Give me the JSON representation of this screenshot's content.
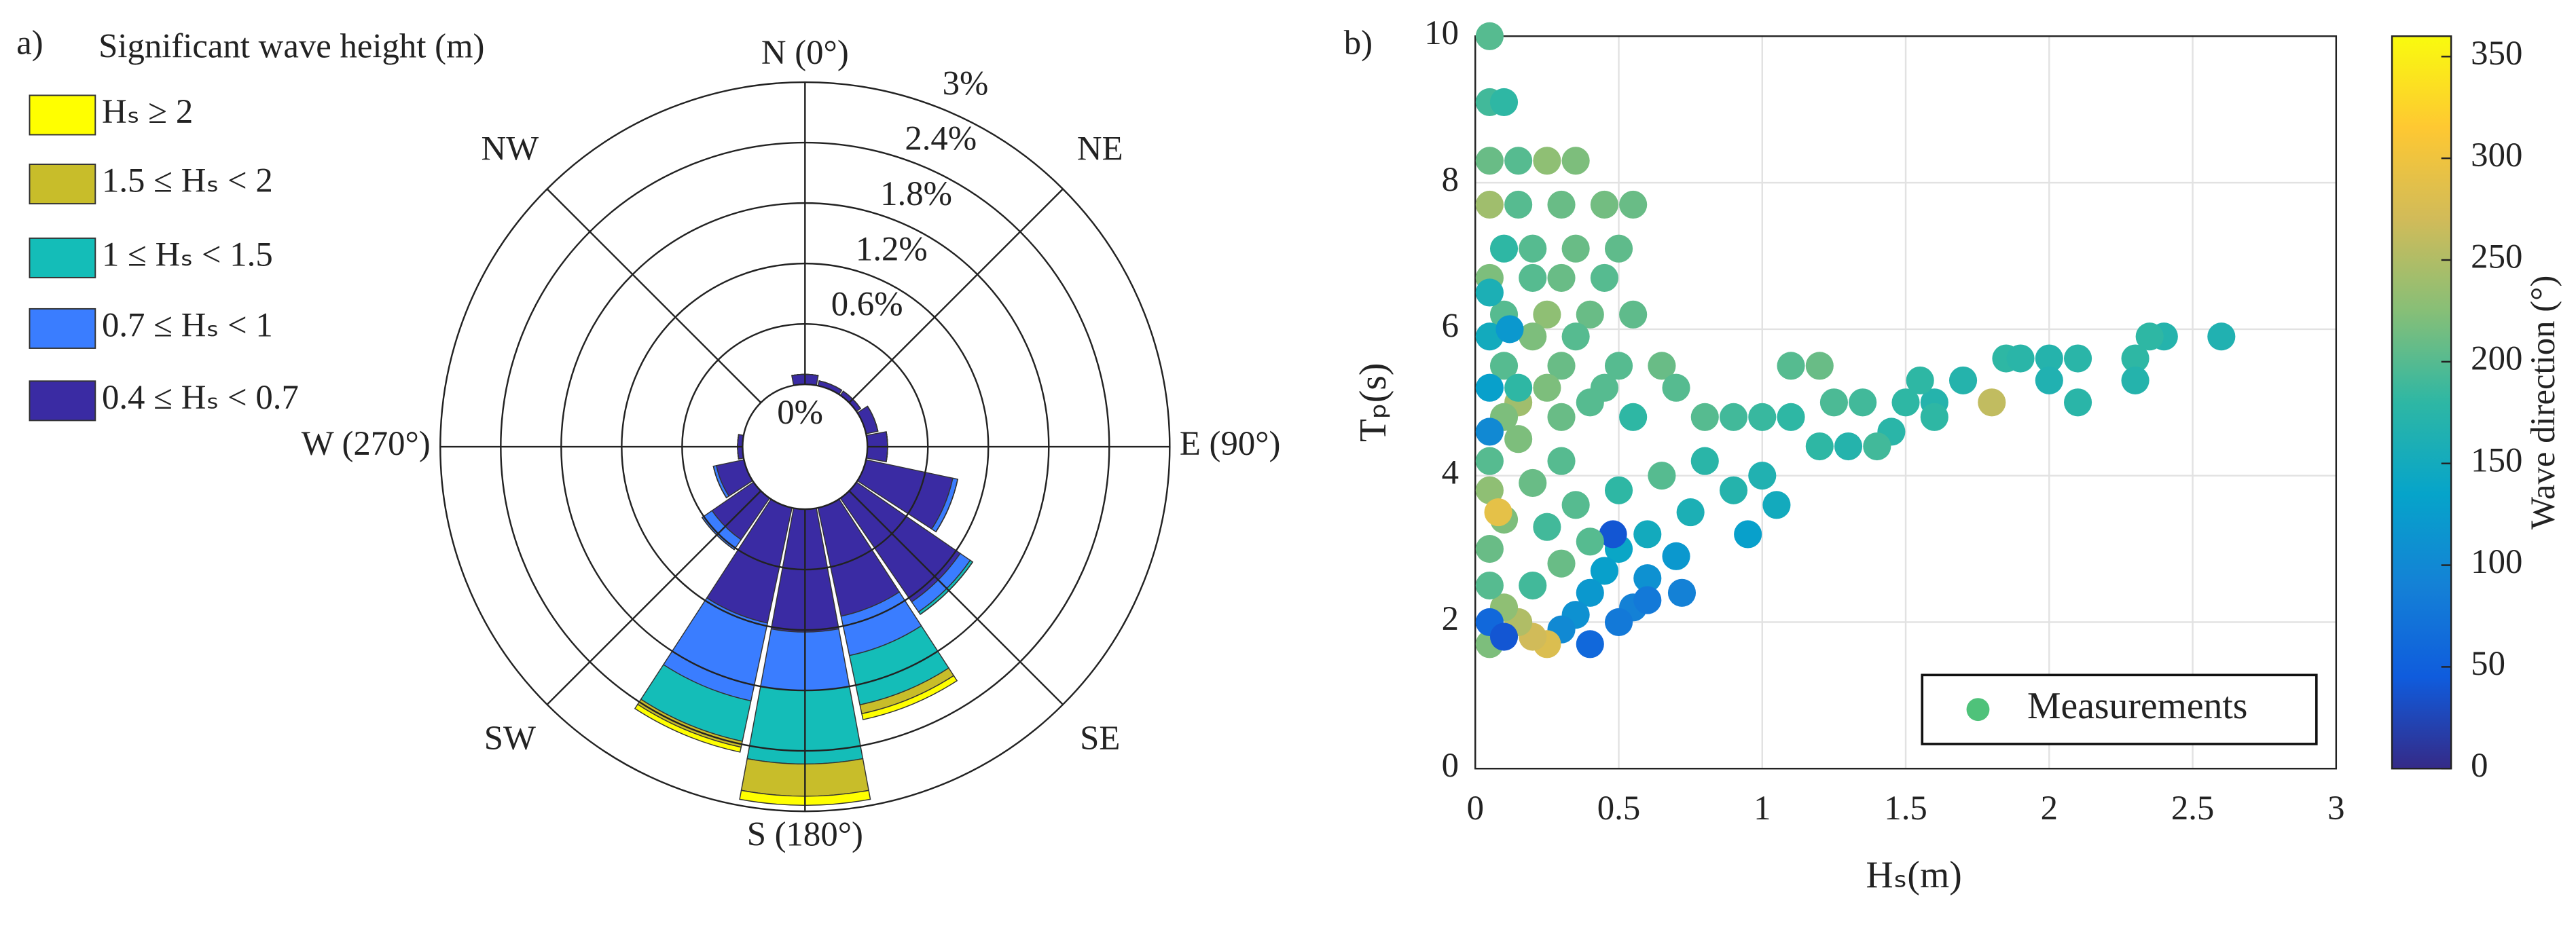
{
  "chart_data": [
    {
      "type": "rose",
      "panel": "a)",
      "legend_title": "Significant wave height (m)",
      "direction_labels": [
        "N (0°)",
        "NE",
        "E (90°)",
        "SE",
        "S (180°)",
        "SW",
        "W (270°)",
        "NW"
      ],
      "directions": [
        0,
        22.5,
        45,
        67.5,
        90,
        112.5,
        135,
        157.5,
        180,
        202.5,
        225,
        247.5,
        270,
        292.5,
        315,
        337.5
      ],
      "rlim": [
        0,
        3
      ],
      "rticks": [
        {
          "value": 0,
          "label": "0%"
        },
        {
          "value": 0.6,
          "label": "0.6%"
        },
        {
          "value": 1.2,
          "label": "1.2%"
        },
        {
          "value": 1.8,
          "label": "1.8%"
        },
        {
          "value": 2.4,
          "label": "2.4%"
        },
        {
          "value": 3,
          "label": "3%"
        }
      ],
      "series": [
        {
          "name": "Hₛ ≥ 2",
          "color": "#ffff00",
          "values": [
            0,
            0,
            0,
            0,
            0,
            0,
            0,
            0.06,
            0.09,
            0.05,
            0,
            0,
            0,
            0,
            0,
            0
          ]
        },
        {
          "name": "1.5 ≤ Hₛ < 2",
          "color": "#c8bd2a",
          "values": [
            0,
            0,
            0,
            0,
            0,
            0,
            0,
            0.09,
            0.32,
            0.06,
            0,
            0,
            0,
            0,
            0,
            0
          ]
        },
        {
          "name": "1 ≤ Hₛ < 1.5",
          "color": "#14bdb8",
          "values": [
            0,
            0,
            0,
            0,
            0,
            0,
            0.03,
            0.5,
            0.73,
            0.41,
            0,
            0,
            0,
            0,
            0,
            0
          ]
        },
        {
          "name": "0.7 ≤ Hₛ < 1",
          "color": "#3a7dff",
          "values": [
            0,
            0,
            0,
            0,
            0,
            0.05,
            0.12,
            0.4,
            0.58,
            0.79,
            0.12,
            0.03,
            0,
            0,
            0,
            0
          ]
        },
        {
          "name": "0.4 ≤ Hₛ < 0.7",
          "color": "#3a2ba3",
          "values": [
            0.1,
            0.05,
            0.05,
            0.12,
            0.2,
            0.88,
            1.25,
            1.1,
            1.22,
            1.17,
            0.5,
            0.28,
            0.05,
            0,
            0,
            0
          ]
        }
      ]
    },
    {
      "type": "scatter",
      "panel": "b)",
      "xlabel": "Hₛ(m)",
      "ylabel": "Tₚ(s)",
      "colorbar_label": "Wave direction (°)",
      "xlim": [
        0,
        3
      ],
      "xticks": [
        0,
        0.5,
        1,
        1.5,
        2,
        2.5,
        3
      ],
      "ylim": [
        0,
        10
      ],
      "yticks": [
        0,
        2,
        4,
        6,
        8,
        10
      ],
      "clim": [
        0,
        360
      ],
      "cticks": [
        0,
        50,
        100,
        150,
        200,
        250,
        300,
        350
      ],
      "grid": true,
      "legend": "bottom-right",
      "series": [
        {
          "name": "Measurements",
          "x": [
            0.05,
            0.05,
            0.1,
            0.05,
            0.15,
            0.25,
            0.35,
            0.05,
            0.15,
            0.3,
            0.45,
            0.55,
            0.1,
            0.2,
            0.35,
            0.5,
            0.05,
            0.2,
            0.3,
            0.45,
            0.1,
            0.25,
            0.4,
            0.55,
            0.05,
            0.2,
            0.35,
            0.1,
            0.3,
            0.5,
            0.65,
            1.1,
            1.2,
            0.05,
            0.25,
            0.45,
            0.7,
            0.15,
            0.4,
            1.25,
            1.35,
            1.5,
            1.6,
            0.1,
            0.3,
            0.55,
            0.8,
            0.9,
            1,
            1.1,
            1.7,
            1.85,
            1.9,
            2,
            2.1,
            2.3,
            2.4,
            2.6,
            2.35,
            2,
            2.1,
            2.3,
            1.8,
            1.55,
            1.45,
            1.3,
            1.2,
            1,
            0.9,
            0.75,
            0.6,
            0.5,
            0.45,
            0.4,
            0.35,
            0.3,
            1.4,
            1.6,
            1.05,
            0.95,
            0.7,
            0.6,
            0.55,
            0.5,
            0.48,
            0.6,
            0.72,
            0.4,
            0.25,
            0.2,
            0.15,
            0.05,
            0.1,
            0.05,
            0.05,
            0.1,
            0.05,
            0.2,
            0.3,
            0.15,
            0.05,
            0.25,
            0.35,
            0.5,
            0.65,
            0.8,
            0.05,
            0.1,
            0.08,
            0.2,
            0.3,
            0.4,
            0.05,
            0.12,
            0.15,
            0.05
          ],
          "y": [
            10,
            9.1,
            9.1,
            8.3,
            8.3,
            8.3,
            8.3,
            7.7,
            7.7,
            7.7,
            7.7,
            7.7,
            7.1,
            7.1,
            7.1,
            7.1,
            6.7,
            6.7,
            6.7,
            6.7,
            6.2,
            6.2,
            6.2,
            6.2,
            5.9,
            5.9,
            5.9,
            5.5,
            5.5,
            5.5,
            5.5,
            5.5,
            5.5,
            5.2,
            5.2,
            5.2,
            5.2,
            5,
            5,
            5,
            5,
            5,
            5,
            4.8,
            4.8,
            4.8,
            4.8,
            4.8,
            4.8,
            4.8,
            5.3,
            5.6,
            5.6,
            5.6,
            5.6,
            5.6,
            5.9,
            5.9,
            5.9,
            5.3,
            5,
            5.3,
            5,
            5.3,
            4.6,
            4.4,
            4.4,
            4,
            3.8,
            3.5,
            3.2,
            3,
            2.7,
            2.4,
            2.1,
            1.9,
            4.4,
            4.8,
            3.6,
            3.2,
            2.9,
            2.6,
            2.2,
            2,
            3.2,
            2.3,
            2.4,
            1.7,
            1.7,
            1.8,
            2,
            1.7,
            2.2,
            2.5,
            3,
            3.4,
            3.8,
            3.9,
            4.2,
            4.5,
            4.2,
            3.3,
            3.6,
            3.8,
            4,
            4.2,
            2,
            1.8,
            3.5,
            2.5,
            2.8,
            3.1,
            6.5,
            6,
            5.2,
            4.6
          ],
          "c": [
            200,
            190,
            180,
            210,
            200,
            230,
            220,
            240,
            200,
            210,
            215,
            210,
            180,
            200,
            210,
            205,
            220,
            200,
            210,
            200,
            200,
            230,
            210,
            205,
            150,
            220,
            200,
            200,
            210,
            200,
            210,
            200,
            210,
            130,
            220,
            200,
            200,
            240,
            200,
            195,
            190,
            180,
            170,
            220,
            210,
            180,
            200,
            190,
            185,
            180,
            170,
            180,
            175,
            170,
            175,
            180,
            170,
            165,
            180,
            165,
            175,
            170,
            260,
            180,
            175,
            170,
            180,
            165,
            170,
            160,
            150,
            140,
            130,
            120,
            110,
            100,
            190,
            180,
            150,
            130,
            120,
            110,
            90,
            80,
            40,
            80,
            90,
            60,
            280,
            270,
            250,
            220,
            230,
            200,
            210,
            220,
            230,
            210,
            200,
            220,
            200,
            190,
            200,
            180,
            200,
            175,
            60,
            40,
            290,
            190,
            210,
            200,
            160,
            120,
            180,
            100
          ]
        }
      ]
    }
  ]
}
